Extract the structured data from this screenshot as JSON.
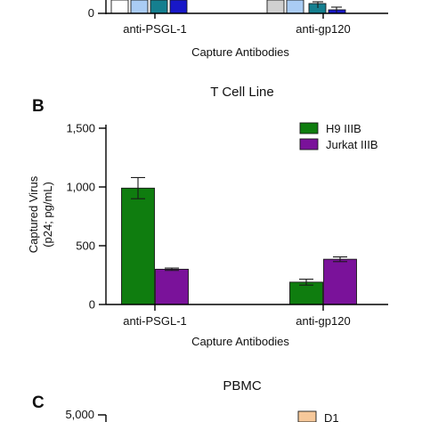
{
  "panel_a": {
    "xlabel": "Capture Antibodies",
    "categories": [
      "anti-PSGL-1",
      "anti-gp120"
    ],
    "y_zero_label": "0",
    "bar_colors": [
      "#ffffff",
      "#aaccf4",
      "#157f8f",
      "#1818c8",
      "#d0d0d0",
      "#aaccf4",
      "#157f8f",
      "#1818c8"
    ]
  },
  "panel_b": {
    "letter": "B",
    "title": "T Cell Line",
    "ylabel_line1": "Captured Virus",
    "ylabel_line2": "(p24; pg/mL)",
    "xlabel": "Capture Antibodies"
  },
  "panel_c": {
    "letter": "C",
    "title": "PBMC",
    "y_top_label": "5,000",
    "legend_first": "D1",
    "legend_first_color": "#f6c89a"
  },
  "chart_data": [
    {
      "type": "bar",
      "title": "T Cell Line",
      "xlabel": "Capture Antibodies",
      "ylabel": "Captured Virus (p24; pg/mL)",
      "categories": [
        "anti-PSGL-1",
        "anti-gp120"
      ],
      "ylim": [
        0,
        1500
      ],
      "yticks": [
        0,
        500,
        1000,
        1500
      ],
      "ytick_labels": [
        "0",
        "500",
        "1,000",
        "1,500"
      ],
      "legend_position": "top-right",
      "grid": false,
      "series": [
        {
          "name": "H9 IIIB",
          "color": "#0f7d0f",
          "values": [
            990,
            190
          ],
          "errors": [
            90,
            25
          ]
        },
        {
          "name": "Jurkat IIIB",
          "color": "#7a129a",
          "values": [
            300,
            385
          ],
          "errors": [
            10,
            20
          ]
        }
      ]
    }
  ]
}
